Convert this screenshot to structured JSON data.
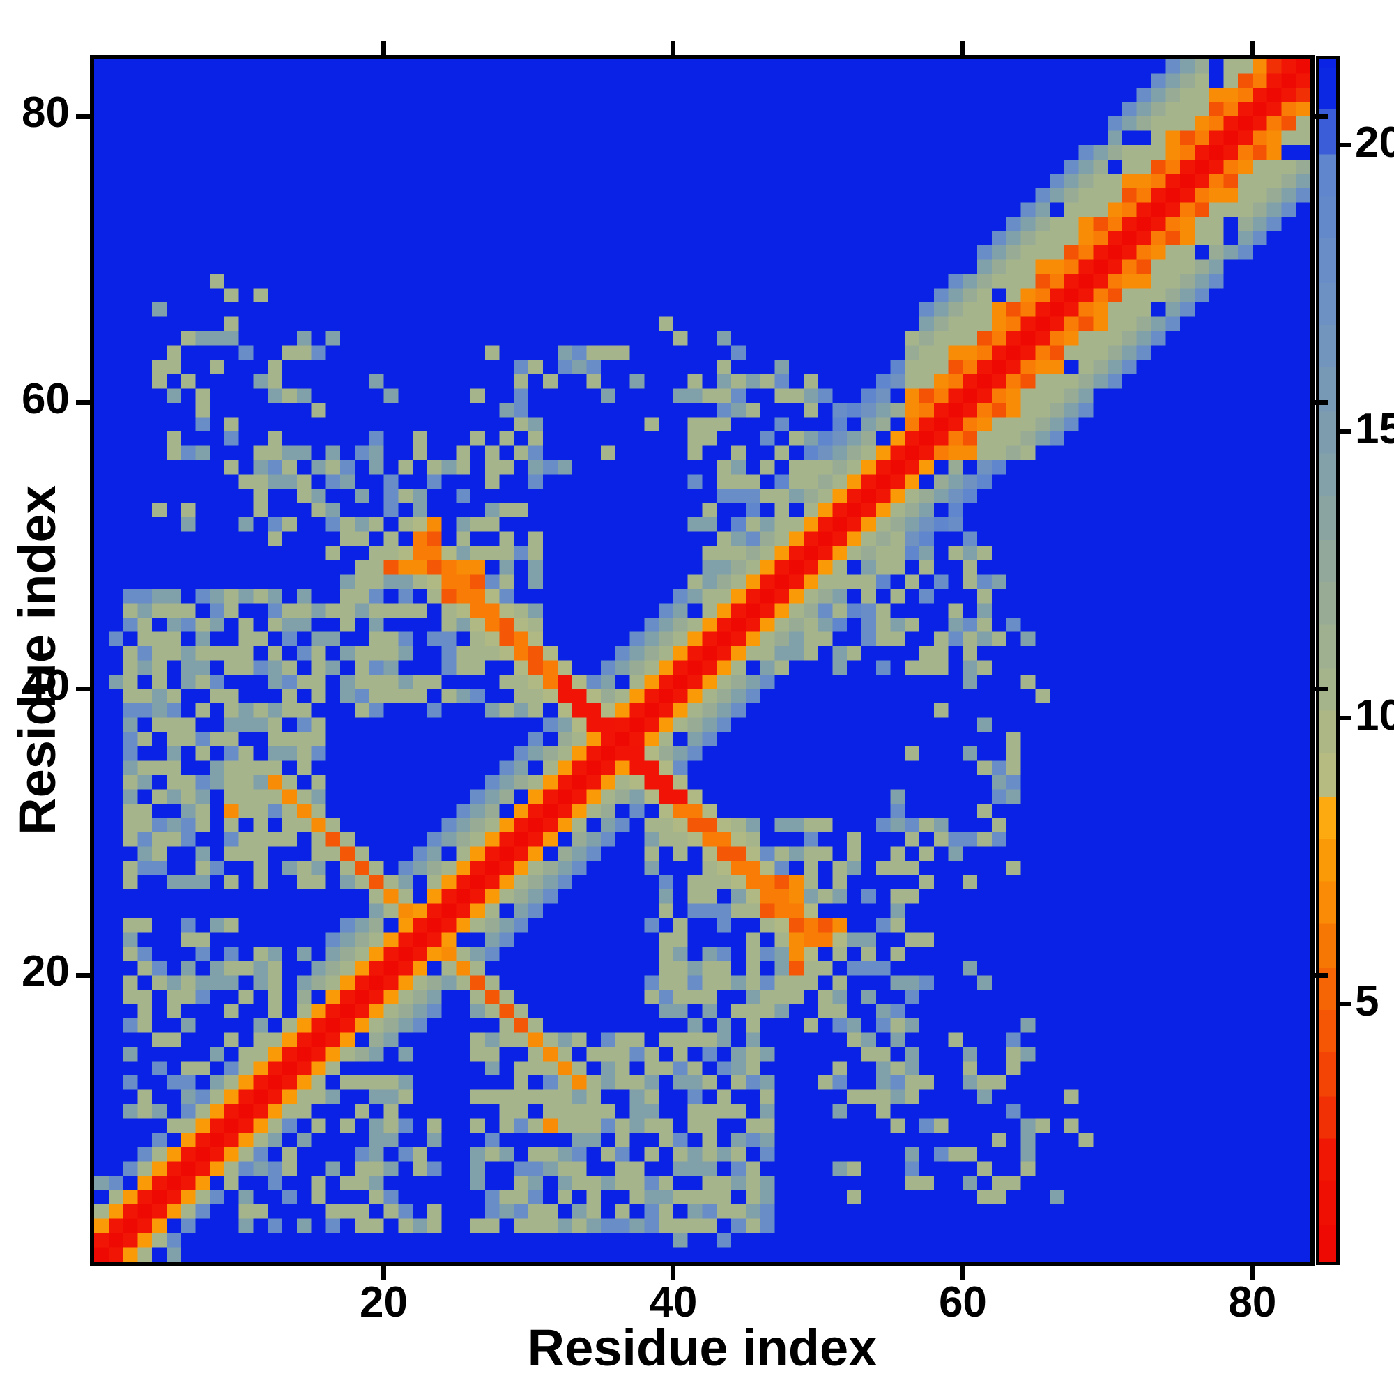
{
  "figure": {
    "kind": "residue-residue distance matrix heatmap",
    "background_color": "#ffffff",
    "frame_color": "#000000"
  },
  "axes": {
    "xlabel": "Residue index",
    "ylabel": "Residue index",
    "x_ticks": [
      20,
      40,
      60,
      80
    ],
    "y_ticks": [
      20,
      40,
      60,
      80
    ],
    "x_range": [
      0,
      84
    ],
    "y_range": [
      0,
      84
    ]
  },
  "colorbar": {
    "ticks": [
      5,
      10,
      15,
      20
    ],
    "vmin": 0.5,
    "vmax": 21.5
  },
  "chart_data": {
    "type": "heatmap",
    "title": "",
    "xlabel": "Residue index",
    "ylabel": "Residue index",
    "grid": false,
    "legend": "colorbar right, values 5-20",
    "n": 84,
    "field_blue": "#0a22e6",
    "colormap_stops": [
      [
        0,
        "#ec0300"
      ],
      [
        2.2,
        "#f11505"
      ],
      [
        3.3,
        "#f23a06"
      ],
      [
        4.6,
        "#f45806"
      ],
      [
        5.5,
        "#f66a04"
      ],
      [
        6.8,
        "#f98c06"
      ],
      [
        7.8,
        "#fba008"
      ],
      [
        8.45,
        "#fcae14"
      ],
      [
        8.55,
        "#b9bd7e"
      ],
      [
        10.5,
        "#a6b48b"
      ],
      [
        12.5,
        "#93a998"
      ],
      [
        14.5,
        "#80a0aa"
      ],
      [
        16.5,
        "#7295bd"
      ],
      [
        18.5,
        "#648aca"
      ],
      [
        20.1,
        "#5d83cf"
      ],
      [
        20.45,
        "#0d2be2"
      ],
      [
        22,
        "#0a22e6"
      ]
    ],
    "matrix_encoding": "symmetric 84x84 matrix generated from this model (approximation of the rendered map)",
    "matrix_model": {
      "n": 84,
      "far": 22,
      "diag": [
        0.8,
        2.2
      ],
      "zones": {
        "narrow_max": 14,
        "mid_max": 44,
        "wide_max": 56
      },
      "profiles": {
        "narrow": [
          7.5,
          10.5,
          18
        ],
        "mid": [
          7.5,
          10.5,
          12,
          14.5,
          18
        ],
        "wide": [
          7.5,
          10.5,
          12,
          14.5,
          17,
          19.5
        ],
        "helix": [
          6.2,
          7.5,
          10.5,
          10.5,
          10.5,
          12,
          14.5,
          18
        ]
      },
      "helix": {
        "verm": 4.4,
        "orange": 6.8,
        "sage": 10.5
      },
      "wide_verm_p": 0.15,
      "corner_red": {
        "min_index": 82,
        "value": 3
      },
      "noise": {
        "hole_p": 0.13,
        "speck_p": 0.04,
        "speck_v": 14.5
      },
      "blob_levels": [
        10.5,
        14.5,
        18
      ],
      "blobs": [
        [
          3,
          16,
          27,
          47,
          0.62
        ],
        [
          17,
          31,
          39,
          50,
          0.66
        ],
        [
          23,
          31,
          50,
          58,
          0.38
        ],
        [
          3,
          13,
          10,
          24,
          0.5
        ],
        [
          12,
          20,
          51,
          58,
          0.4
        ],
        [
          28,
          36,
          56,
          65,
          0.22
        ],
        [
          42,
          52,
          47,
          62,
          0.45
        ],
        [
          44,
          56,
          44,
          56,
          0.5
        ],
        [
          6,
          17,
          57,
          66,
          0.18
        ],
        [
          19,
          23,
          40,
          56,
          0.45
        ],
        [
          36,
          44,
          58,
          66,
          0.15
        ],
        [
          5,
          14,
          52,
          70,
          0.12
        ]
      ],
      "hairpin1": {
        "sum": 47,
        "i0": 13,
        "i1": 23,
        "core": 6.8,
        "verm": 4.6,
        "verm_i": [
          17,
          18,
          19,
          20
        ],
        "flank_sums": [
          46,
          48
        ],
        "flank": 10.5,
        "ext": [
          [
            13,
            33,
            10.5
          ],
          [
            14,
            33,
            10.5
          ],
          [
            15,
            33,
            14.5
          ]
        ]
      },
      "hairpin2": {
        "sums": [
          73,
          74
        ],
        "i0": 23,
        "i1": 36,
        "core": 6.2,
        "verm": 4.6,
        "verm_i": [
          29,
          31
        ],
        "red_i": 33,
        "red": 2.0,
        "flank_sums": [
          72,
          75
        ],
        "flank": 9.5,
        "arm": [
          [
            21,
            49,
            4.6
          ],
          [
            22,
            49,
            6.8
          ],
          [
            23,
            49,
            6.8
          ],
          [
            24,
            49,
            4.6
          ],
          [
            25,
            49,
            6.8
          ],
          [
            26,
            49,
            6.8
          ],
          [
            27,
            49,
            6.8
          ],
          [
            22,
            50,
            9.5
          ],
          [
            23,
            50,
            6.8
          ],
          [
            24,
            50,
            9.5
          ],
          [
            25,
            50,
            9.5
          ],
          [
            25,
            47,
            4.6
          ],
          [
            25,
            48,
            6.8
          ],
          [
            27,
            48,
            4.6
          ],
          [
            24,
            51,
            4.6
          ],
          [
            24,
            52,
            6.8
          ],
          [
            23,
            52,
            10.5
          ]
        ]
      },
      "singles": [
        [
          10,
          32,
          6.8
        ],
        [
          2,
          41,
          14.5
        ],
        [
          3,
          42,
          10.5
        ],
        [
          2,
          44,
          18
        ],
        [
          4,
          40,
          10.5
        ],
        [
          10,
          65,
          14.5
        ],
        [
          13,
          62,
          10.5
        ],
        [
          14,
          61,
          10.5
        ],
        [
          15,
          61,
          14.5
        ],
        [
          6,
          58,
          14.5
        ],
        [
          11,
          55,
          10.5
        ],
        [
          16,
          60,
          10.5
        ],
        [
          20,
          62,
          14.5
        ],
        [
          21,
          61,
          14.5
        ],
        [
          27,
          61,
          10.5
        ],
        [
          30,
          62,
          14.5
        ],
        [
          33,
          64,
          14.5
        ],
        [
          35,
          64,
          10.5
        ],
        [
          31,
          59,
          14.5
        ],
        [
          44,
          63,
          10.5
        ],
        [
          46,
          62,
          14.5
        ],
        [
          45,
          64,
          18
        ],
        [
          48,
          63,
          14.5
        ],
        [
          57,
          65,
          10.5
        ],
        [
          36,
          61,
          14.5
        ],
        [
          38,
          62,
          14.5
        ],
        [
          41,
          61,
          14.5
        ],
        [
          8,
          59,
          18
        ],
        [
          12,
          53,
          10.5
        ],
        [
          5,
          30,
          10.5
        ],
        [
          7,
          27,
          14.5
        ],
        [
          43,
          61,
          14.5
        ],
        [
          42,
          62,
          18
        ]
      ]
    }
  }
}
